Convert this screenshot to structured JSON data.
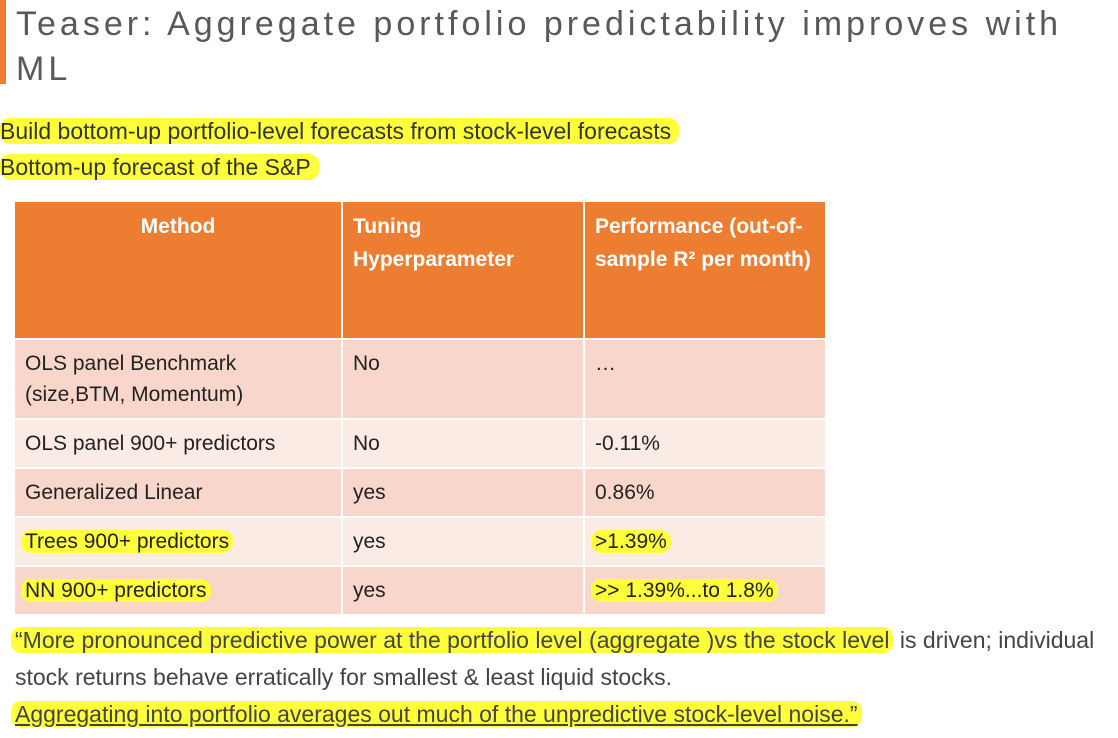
{
  "header": {
    "title": "Teaser: Aggregate portfolio predictability improves with ML"
  },
  "bullets": [
    "Build bottom-up portfolio-level forecasts from stock-level forecasts",
    "Bottom-up forecast of the S&P"
  ],
  "table": {
    "columns": [
      "Method",
      "Tuning Hyperparameter",
      "Performance (out-of-sample R² per month)"
    ],
    "rows": [
      [
        "OLS panel Benchmark (size,BTM, Momentum)",
        "No",
        "…"
      ],
      [
        "OLS  panel 900+ predictors",
        "No",
        "-0.11%"
      ],
      [
        "Generalized Linear",
        "yes",
        "0.86%"
      ],
      [
        "Trees 900+ predictors",
        "yes",
        ">1.39%"
      ],
      [
        "NN 900+ predictors",
        "yes",
        ">> 1.39%...to 1.8%"
      ]
    ]
  },
  "quote": {
    "segments": [
      "“More pronounced predictive power at the portfolio level (aggregate )vs the stock level",
      " is driven;  individual stock returns behave erratically for smallest & least liquid stocks.",
      "Aggregating into portfolio averages out much of the unpredictive stock-level noise.”"
    ]
  }
}
